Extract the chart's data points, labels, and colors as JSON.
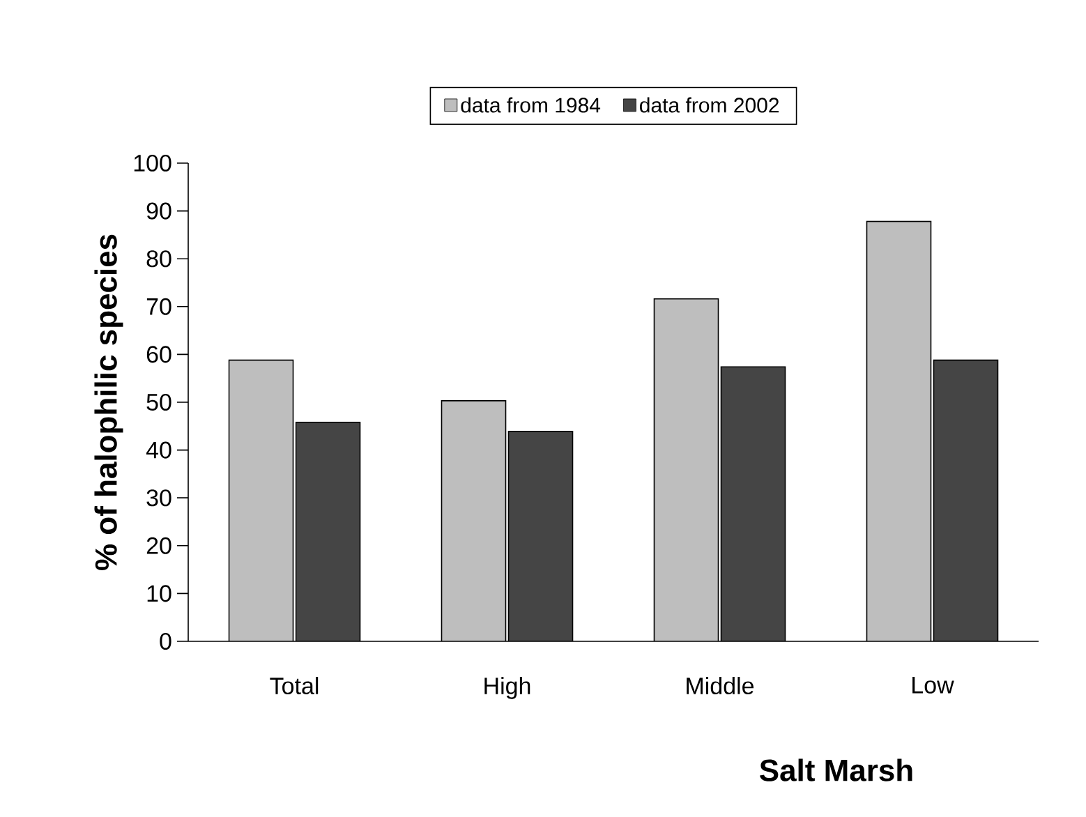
{
  "chart_data": {
    "type": "bar",
    "xlabel": "Salt Marsh",
    "ylabel": "% of halophilic species",
    "categories": [
      "Total",
      "High",
      "Middle",
      "Low"
    ],
    "series": [
      {
        "name": "data from 1984",
        "color": "#bebebe",
        "values": [
          58.8,
          50.3,
          71.6,
          87.8
        ]
      },
      {
        "name": "data from 2002",
        "color": "#454545",
        "values": [
          45.8,
          43.9,
          57.4,
          58.8
        ]
      }
    ],
    "ylim": [
      0,
      100
    ],
    "yticks": [
      0,
      10,
      20,
      30,
      40,
      50,
      60,
      70,
      80,
      90,
      100
    ],
    "legend": "top",
    "grid": false
  }
}
